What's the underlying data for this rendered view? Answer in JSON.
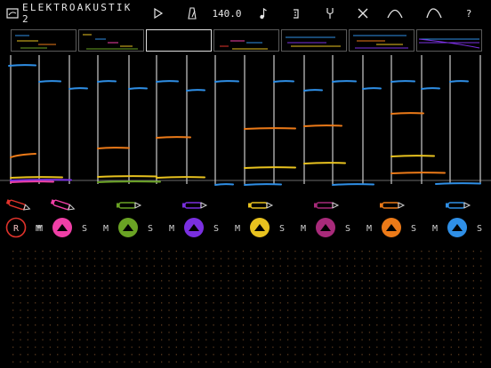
{
  "app": {
    "title": "ELEKTROAKUSTIK 2",
    "logo_icon": "window-icon"
  },
  "toolbar": {
    "play_icon": "play-icon",
    "metronome_icon": "metronome-icon",
    "tempo": "140.0",
    "note_icon": "note-icon",
    "loop_icon": "loop-icon",
    "tuning_icon": "tuning-fork-icon",
    "clear_icon": "clear-x-icon",
    "envelope1_icon": "envelope-curve-icon",
    "envelope2_icon": "envelope-curve-alt-icon",
    "help_label": "?"
  },
  "overview": {
    "patterns": [
      {
        "selected": false
      },
      {
        "selected": false
      },
      {
        "selected": true
      },
      {
        "selected": false
      },
      {
        "selected": false
      },
      {
        "selected": false
      },
      {
        "selected": false
      }
    ]
  },
  "colors": {
    "red": "#e0332b",
    "pink": "#ef3fa6",
    "green": "#6aa324",
    "purple": "#7a2fe0",
    "yellow": "#e8c21f",
    "magenta": "#a82a7a",
    "orange": "#ec7a18",
    "blue": "#2f8fe6",
    "grid_dot": "#5b3a1e"
  },
  "tracks": [
    {
      "name": "track-1",
      "color_key": "red",
      "record_label": "R",
      "mute_label": "M",
      "solo_label": "S"
    },
    {
      "name": "track-2",
      "color_key": "pink",
      "mute_label": "M",
      "solo_label": "S"
    },
    {
      "name": "track-3",
      "color_key": "green",
      "mute_label": "M",
      "solo_label": "S"
    },
    {
      "name": "track-4",
      "color_key": "purple",
      "mute_label": "M",
      "solo_label": "S"
    },
    {
      "name": "track-5",
      "color_key": "yellow",
      "mute_label": "M",
      "solo_label": "S"
    },
    {
      "name": "track-6",
      "color_key": "magenta",
      "mute_label": "M",
      "solo_label": "S"
    },
    {
      "name": "track-7",
      "color_key": "orange",
      "mute_label": "M",
      "solo_label": "S"
    },
    {
      "name": "track-8",
      "color_key": "blue",
      "mute_label": "M",
      "solo_label": "S"
    }
  ]
}
